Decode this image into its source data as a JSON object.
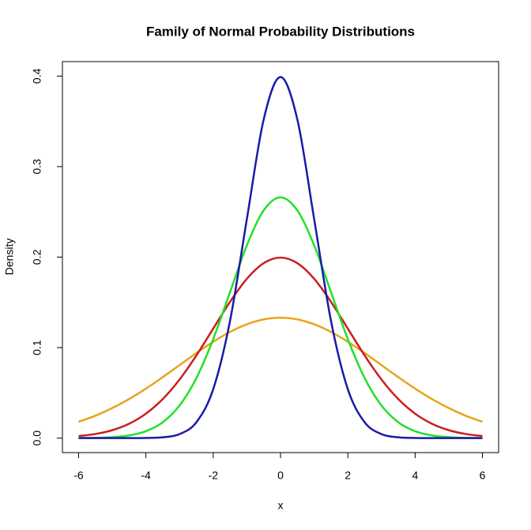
{
  "chart_data": {
    "type": "line",
    "title": "Family of Normal Probability Distributions",
    "x_label": "x",
    "y_label": "Density",
    "x": [
      -6,
      -5.5,
      -5,
      -4.5,
      -4,
      -3.5,
      -3,
      -2.5,
      -2,
      -1.5,
      -1,
      -0.5,
      0,
      0.5,
      1,
      1.5,
      2,
      2.5,
      3,
      3.5,
      4,
      4.5,
      5,
      5.5,
      6
    ],
    "series": [
      {
        "color": "#e8a31c",
        "values": [
          0.018,
          0.02477,
          0.03316,
          0.04317,
          0.05467,
          0.06733,
          0.08066,
          0.09397,
          0.10648,
          0.11736,
          0.12579,
          0.13115,
          0.13298,
          0.13115,
          0.12579,
          0.11736,
          0.10648,
          0.09397,
          0.08066,
          0.06733,
          0.05467,
          0.04317,
          0.03316,
          0.02477,
          0.018
        ]
      },
      {
        "color": "#c8201e",
        "values": [
          0.00222,
          0.00455,
          0.00876,
          0.01587,
          0.027,
          0.04314,
          0.06476,
          0.09132,
          0.12099,
          0.15057,
          0.17603,
          0.19333,
          0.19947,
          0.19333,
          0.17603,
          0.15057,
          0.12099,
          0.09132,
          0.06476,
          0.04314,
          0.027,
          0.01587,
          0.00876,
          0.00455,
          0.00222
        ]
      },
      {
        "color": "#22e02a",
        "values": [
          9e-05,
          0.00032,
          0.00103,
          0.00295,
          0.0076,
          0.01748,
          0.036,
          0.06632,
          0.10934,
          0.16131,
          0.21297,
          0.25159,
          0.26596,
          0.25159,
          0.21297,
          0.16131,
          0.10934,
          0.06632,
          0.036,
          0.01748,
          0.0076,
          0.00295,
          0.00103,
          0.00032,
          9e-05
        ]
      },
      {
        "color": "#1a1aa8",
        "values": [
          1e-08,
          1e-07,
          1.5e-06,
          1.6e-05,
          0.00013,
          0.00087,
          0.00443,
          0.01753,
          0.05399,
          0.12952,
          0.24197,
          0.35207,
          0.39894,
          0.35207,
          0.24197,
          0.12952,
          0.05399,
          0.01753,
          0.00443,
          0.00087,
          0.00013,
          1.6e-05,
          1.5e-06,
          1e-07,
          1e-08
        ]
      }
    ],
    "xlim": [
      -6.48,
      6.48
    ],
    "ylim": [
      -0.016,
      0.416
    ],
    "xticks": [
      -6,
      -4,
      -2,
      0,
      2,
      4,
      6
    ],
    "yticks": [
      {
        "value": 0,
        "label": "0.0"
      },
      0.1,
      0.2,
      0.3,
      0.4
    ],
    "grid": false
  }
}
